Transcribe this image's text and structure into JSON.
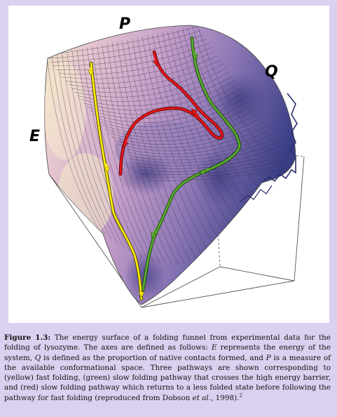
{
  "figure": {
    "axis_labels": {
      "p": "P",
      "q": "Q",
      "e": "E"
    },
    "colors": {
      "surface_light": "#f4e9c4",
      "surface_mid": "#c5a0c8",
      "surface_dark": "#3a3e86",
      "fast_pathway": "#ffee00",
      "slow_barrier_pathway": "#5aab2c",
      "slow_return_pathway": "#e8161a",
      "caption_background": "#d9d1ef"
    }
  },
  "caption": {
    "label": "Figure 1.3:",
    "s1": " The energy surface of a folding funnel from experimental data for the folding of lysozyme. The axes are defined as follows: ",
    "e": "E",
    "s2": " represents the energy of the system, ",
    "q": "Q",
    "s3": " is defined as the proportion of native contacts formed, and ",
    "p": "P",
    "s4": " is a measure of the available conformational space. Three pathways are shown corresponding to (yellow) fast folding, (green) slow folding pathway that crosses the high energy barrier, and (red) slow folding pathway which returns to a less folded state before following the pathway for fast folding (reproduced from Dobson ",
    "etal": "et al.",
    "s5": ", 1998).",
    "ref": "2"
  }
}
